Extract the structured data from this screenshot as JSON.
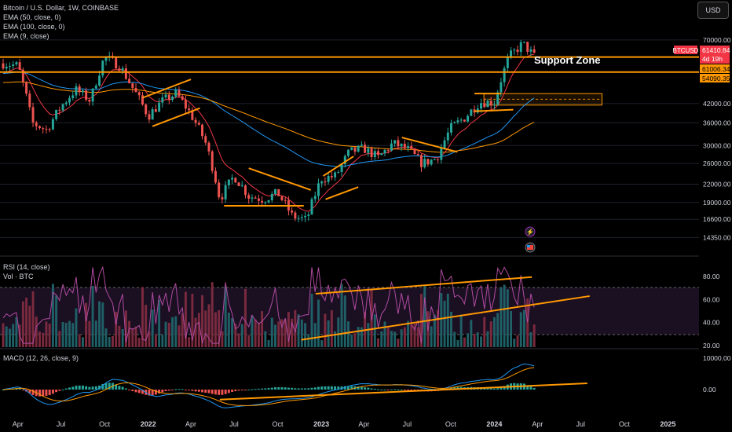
{
  "legend": {
    "title": "Bitcoin / U.S. Dollar, 1W, COINBASE",
    "ema50": "EMA (50, close, 0)",
    "ema100": "EMA (100, close, 0)",
    "ema9": "EMA (9, close)",
    "rsi": "RSI (14, close)",
    "vol": "Vol · BTC",
    "macd": "MACD (12, 26, close, 9)"
  },
  "currency_button": "USD",
  "annotations": {
    "support_zone": "Support Zone"
  },
  "price_tags": {
    "symbol": "BTCUSD",
    "last": "61410.84",
    "countdown": "4d 19h",
    "level_upper": "61006.34",
    "level_lower": "54090.35"
  },
  "colors": {
    "up": "#26a69a",
    "down": "#ef5350",
    "ema9": "#f23645",
    "ema50": "#2196f3",
    "ema100": "#ff9800",
    "rsi": "#b04ba0",
    "macd": "#2196f3",
    "signal": "#ff9800",
    "drawing": "#ff9800",
    "grid": "#1e222d"
  },
  "chart_data": [
    {
      "type": "candlestick",
      "title": "Bitcoin / U.S. Dollar, 1W, COINBASE",
      "y_scale": "log",
      "y_ticks": [
        70000,
        61006.34,
        54090.35,
        42000,
        36000,
        30000,
        26000,
        22000,
        19000,
        16600,
        14350
      ],
      "y_tick_labels": [
        "70000.00",
        "61006.34",
        "54090.35",
        "42000.00",
        "36000.00",
        "30000.00",
        "26000.00",
        "22000.00",
        "19000.00",
        "16600.00",
        "14350.00"
      ],
      "x_tick_labels": [
        "Apr",
        "Jul",
        "Oct",
        "2022",
        "Apr",
        "Jul",
        "Oct",
        "2023",
        "Apr",
        "Jul",
        "Oct",
        "2024",
        "Apr",
        "Jul",
        "Oct",
        "2025"
      ],
      "x_start": "2021-03",
      "x_end": "2025-03",
      "close_path": [
        [
          "2021-03",
          58000
        ],
        [
          "2021-04",
          57000
        ],
        [
          "2021-05",
          36000
        ],
        [
          "2021-06",
          34000
        ],
        [
          "2021-07",
          41000
        ],
        [
          "2021-08",
          47000
        ],
        [
          "2021-09",
          43000
        ],
        [
          "2021-10",
          61000
        ],
        [
          "2021-11",
          57000
        ],
        [
          "2021-12",
          47000
        ],
        [
          "2022-01",
          38000
        ],
        [
          "2022-02",
          43000
        ],
        [
          "2022-03",
          45500
        ],
        [
          "2022-04",
          38500
        ],
        [
          "2022-05",
          31000
        ],
        [
          "2022-06",
          19500
        ],
        [
          "2022-07",
          23500
        ],
        [
          "2022-08",
          20000
        ],
        [
          "2022-09",
          19500
        ],
        [
          "2022-10",
          20500
        ],
        [
          "2022-11",
          17000
        ],
        [
          "2022-12",
          16500
        ],
        [
          "2023-01",
          23000
        ],
        [
          "2023-02",
          23500
        ],
        [
          "2023-03",
          28500
        ],
        [
          "2023-04",
          29300
        ],
        [
          "2023-05",
          27200
        ],
        [
          "2023-06",
          30500
        ],
        [
          "2023-07",
          29200
        ],
        [
          "2023-08",
          26000
        ],
        [
          "2023-09",
          27000
        ],
        [
          "2023-10",
          34500
        ],
        [
          "2023-11",
          37700
        ],
        [
          "2023-12",
          42500
        ],
        [
          "2024-01",
          42500
        ],
        [
          "2024-02",
          61000
        ],
        [
          "2024-03",
          68000
        ],
        [
          "2024-03-25",
          61410.84
        ]
      ],
      "series": [
        {
          "name": "EMA (9, close)"
        },
        {
          "name": "EMA (50, close, 0)"
        },
        {
          "name": "EMA (100, close, 0)"
        }
      ],
      "last_price": 61410.84,
      "price_levels": [
        61006.34,
        54090.35
      ]
    },
    {
      "type": "line",
      "title": "RSI (14, close)",
      "y_ticks": [
        80,
        60,
        40,
        20
      ],
      "y_tick_labels": [
        "80.00",
        "60.00",
        "40.00",
        "20.00"
      ],
      "bands": [
        70,
        30
      ]
    },
    {
      "type": "bar",
      "title": "Vol · BTC"
    },
    {
      "type": "line",
      "title": "MACD (12, 26, close, 9)",
      "y_ticks": [
        10000,
        0
      ],
      "y_tick_labels": [
        "10000.00",
        "0.00"
      ],
      "series": [
        {
          "name": "MACD"
        },
        {
          "name": "Signal"
        },
        {
          "name": "Histogram"
        }
      ]
    }
  ]
}
